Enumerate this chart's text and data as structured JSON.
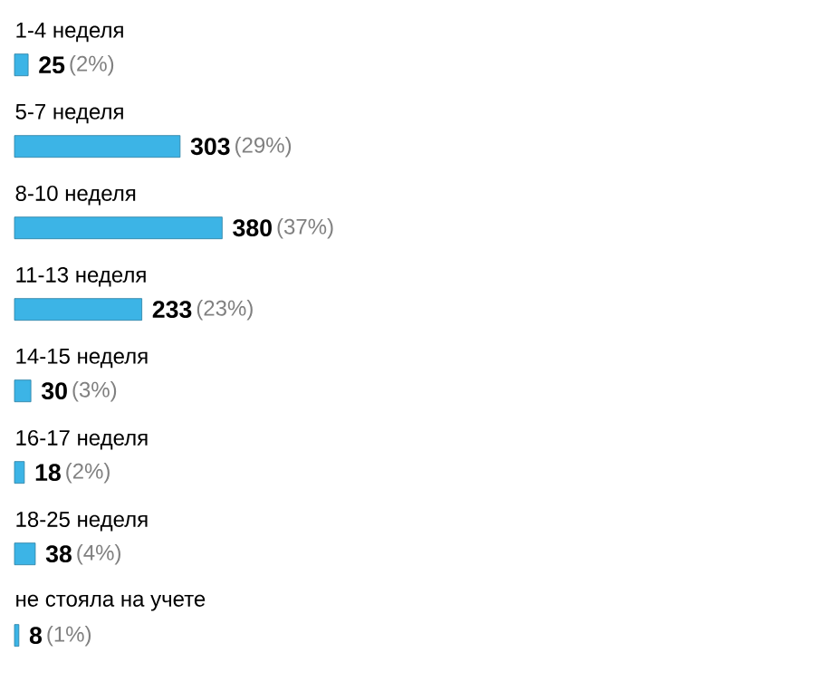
{
  "chart_data": {
    "type": "bar",
    "orientation": "horizontal",
    "categories": [
      "1-4 неделя",
      "5-7 неделя",
      "8-10 неделя",
      "11-13 неделя",
      "14-15 неделя",
      "16-17 неделя",
      "18-25 неделя",
      "не стояла на учете"
    ],
    "values": [
      25,
      303,
      380,
      233,
      30,
      18,
      38,
      8
    ],
    "color": "#3cb4e6",
    "data_labels": true,
    "annotations": [
      "(2%)",
      "(29%)",
      "(37%)",
      "(23%)",
      "(3%)",
      "(2%)",
      "(4%)",
      "(1%)"
    ]
  }
}
